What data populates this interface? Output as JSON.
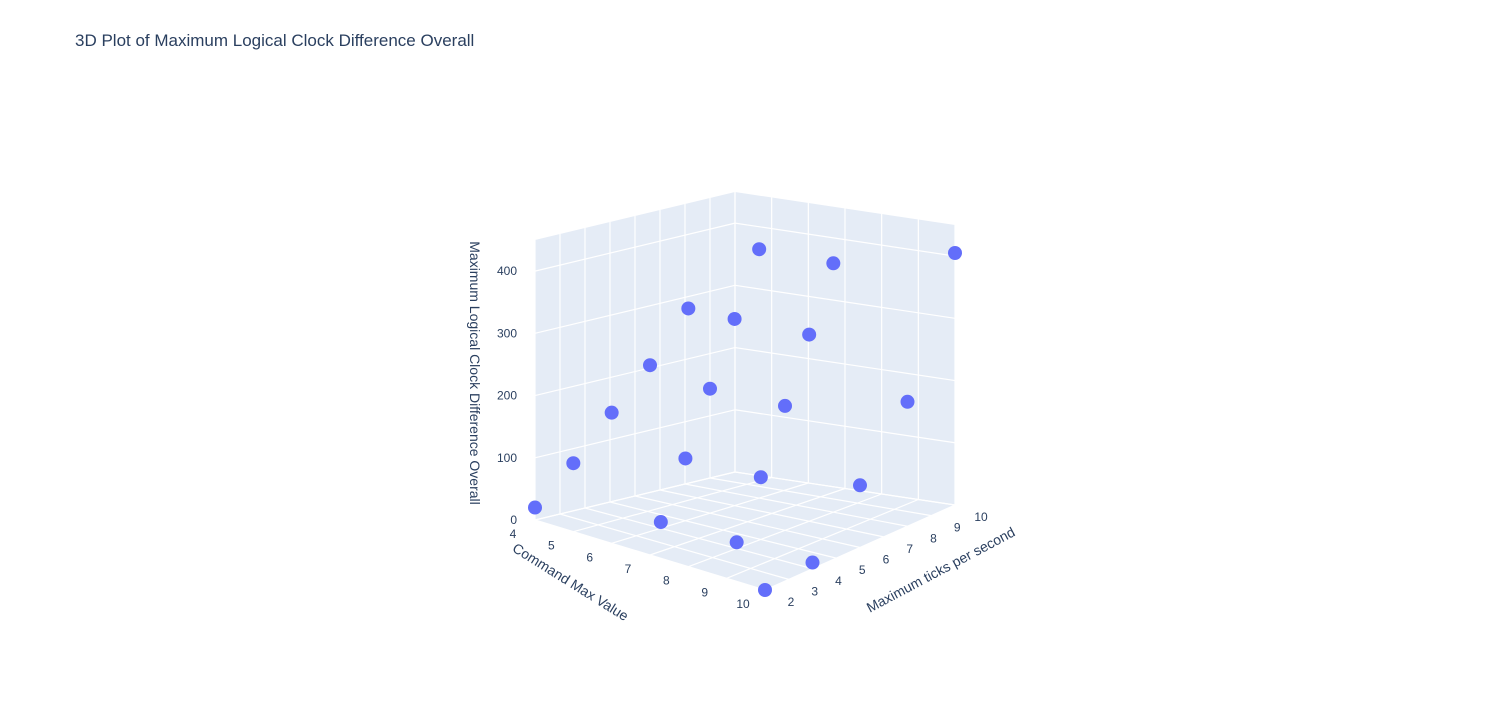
{
  "chart_data": {
    "type": "scatter3d",
    "title": "3D Plot of Maximum Logical Clock Difference Overall",
    "xlabel": "Command Max Value",
    "ylabel": "Maximum ticks per second",
    "zlabel": "Maximum Logical Clock Difference Overall",
    "x_ticks": [
      "4",
      "5",
      "6",
      "7",
      "8",
      "9",
      "10"
    ],
    "y_ticks": [
      "2",
      "3",
      "4",
      "5",
      "6",
      "7",
      "8",
      "9",
      "10"
    ],
    "z_ticks": [
      "0",
      "100",
      "200",
      "300",
      "400"
    ],
    "marker_color": "#636efa",
    "grid_color": "#ffffff",
    "background_color": "#e5ecf6",
    "points": [
      {
        "x": 4,
        "y": 2,
        "z": 20
      },
      {
        "x": 5,
        "y": 2,
        "z": 110
      },
      {
        "x": 6,
        "y": 2,
        "z": 210
      },
      {
        "x": 7,
        "y": 2,
        "z": 305
      },
      {
        "x": 8,
        "y": 2,
        "z": 415
      },
      {
        "x": 6,
        "y": 4,
        "z": 10
      },
      {
        "x": 6,
        "y": 5,
        "z": 100
      },
      {
        "x": 6,
        "y": 6,
        "z": 200
      },
      {
        "x": 6,
        "y": 7,
        "z": 300
      },
      {
        "x": 6,
        "y": 8,
        "z": 400
      },
      {
        "x": 8,
        "y": 4,
        "z": 10
      },
      {
        "x": 8,
        "y": 5,
        "z": 100
      },
      {
        "x": 8,
        "y": 6,
        "z": 200
      },
      {
        "x": 8,
        "y": 7,
        "z": 300
      },
      {
        "x": 8,
        "y": 8,
        "z": 400
      },
      {
        "x": 10,
        "y": 2,
        "z": 0
      },
      {
        "x": 10,
        "y": 4,
        "z": 10
      },
      {
        "x": 10,
        "y": 6,
        "z": 100
      },
      {
        "x": 10,
        "y": 8,
        "z": 200
      },
      {
        "x": 10,
        "y": 10,
        "z": 405
      }
    ]
  }
}
